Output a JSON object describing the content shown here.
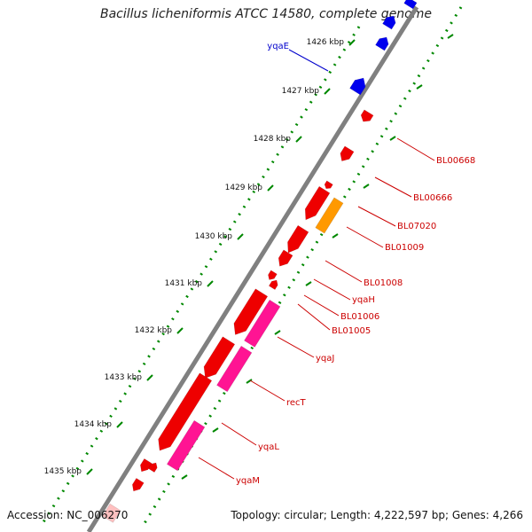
{
  "title": "Bacillus licheniformis ATCC 14580, complete genome",
  "footer": {
    "accession": "Accession: NC_006270",
    "summary": "Topology: circular; Length: 4,222,597 bp; Genes: 4,266"
  },
  "colors": {
    "backbone": "#808080",
    "forward_gene": "#ee0000",
    "reverse_gene_blue": "#0000ee",
    "rna_orange": "#ff9900",
    "pink_gene": "#ff1493",
    "tick_green": "#008800",
    "label_red": "#cc0000",
    "label_blue": "#0000cc"
  },
  "ticks": [
    {
      "label": "1426 kbp"
    },
    {
      "label": "1427 kbp"
    },
    {
      "label": "1428 kbp"
    },
    {
      "label": "1429 kbp"
    },
    {
      "label": "1430 kbp"
    },
    {
      "label": "1431 kbp"
    },
    {
      "label": "1432 kbp"
    },
    {
      "label": "1433 kbp"
    },
    {
      "label": "1434 kbp"
    },
    {
      "label": "1435 kbp"
    }
  ],
  "gene_labels": [
    {
      "name": "yqaE",
      "color": "blue"
    },
    {
      "name": "BL00668",
      "color": "red"
    },
    {
      "name": "BL00666",
      "color": "red"
    },
    {
      "name": "BL07020",
      "color": "red"
    },
    {
      "name": "BL01009",
      "color": "red"
    },
    {
      "name": "BL01008",
      "color": "red"
    },
    {
      "name": "yqaH",
      "color": "red"
    },
    {
      "name": "BL01006",
      "color": "red"
    },
    {
      "name": "BL01005",
      "color": "red"
    },
    {
      "name": "yqaJ",
      "color": "red"
    },
    {
      "name": "recT",
      "color": "red"
    },
    {
      "name": "yqaL",
      "color": "red"
    },
    {
      "name": "yqaM",
      "color": "red"
    }
  ]
}
